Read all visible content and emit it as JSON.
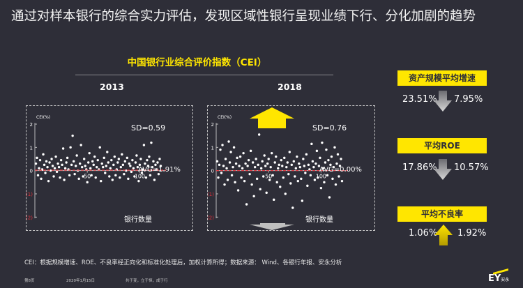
{
  "title": "通过对样本银行的综合实力评估，发现区域性银行呈现业绩下行、分化加剧的趋势",
  "subtitle": "中国银行业综合评价指数（CEI）",
  "metrics": [
    {
      "label": "资产规模平均增速",
      "from": "23.51%",
      "to": "7.95%",
      "direction": "down"
    },
    {
      "label": "平均ROE",
      "from": "17.86%",
      "to": "10.57%",
      "direction": "down"
    },
    {
      "label": "平均不良率",
      "from": "1.06%",
      "to": "1.92%",
      "direction": "up"
    }
  ],
  "footnote": "CEI：根据规模增速、ROE、不良率经正向化和标准化处理后，加权计算所得；数据来源： Wind、各银行年报、安永分析",
  "footer": {
    "page": "第8页",
    "date": "2020年1月15日",
    "authors": "共于变，立于恒，成于行"
  },
  "logo": {
    "main": "EY",
    "sub": "安永"
  },
  "colors": {
    "background": "#2e2e38",
    "accent": "#ffe600",
    "avg_line": "#e0303a",
    "text": "#ffffff"
  },
  "chart_data": [
    {
      "type": "scatter",
      "year_label": "2013",
      "ylabel": "CEI(%)",
      "xlabel": "银行数量",
      "yticks": [
        "2",
        "1",
        "0",
        "(1)",
        "(2)"
      ],
      "ytick_values": [
        2,
        1,
        0,
        -1,
        -2
      ],
      "xticks": [
        "50",
        "100"
      ],
      "xtick_values": [
        50,
        100
      ],
      "xlim": [
        0,
        125
      ],
      "ylim": [
        -2.2,
        2.3
      ],
      "sd_label": "SD=0.59",
      "avg_label": "AVG=1.91%",
      "avg_value": 0.019,
      "trend_arrow": "",
      "series": [
        {
          "x": [
            1,
            2,
            3,
            4,
            5,
            6,
            7,
            8,
            9,
            10,
            11,
            12,
            13,
            14,
            15,
            16,
            17,
            18,
            19,
            20,
            21,
            22,
            23,
            24,
            25,
            26,
            27,
            28,
            29,
            30,
            31,
            32,
            33,
            34,
            35,
            36,
            37,
            38,
            39,
            40,
            41,
            42,
            43,
            44,
            45,
            46,
            47,
            48,
            49,
            50,
            51,
            52,
            53,
            54,
            55,
            56,
            57,
            58,
            59,
            60,
            61,
            62,
            63,
            64,
            65,
            66,
            67,
            68,
            69,
            70,
            71,
            72,
            73,
            74,
            75,
            76,
            77,
            78,
            79,
            80,
            81,
            82,
            83,
            84,
            85,
            86,
            87,
            88,
            89,
            90,
            91,
            92,
            93,
            94,
            95,
            96,
            97,
            98,
            99,
            100,
            101,
            102,
            103,
            104,
            105,
            106,
            107,
            108,
            109,
            110,
            111,
            112,
            113,
            114,
            115,
            116,
            117,
            118,
            119,
            120
          ],
          "y": [
            0.3,
            0.55,
            -0.2,
            0.1,
            0.45,
            -0.35,
            0.05,
            0.7,
            0.25,
            -0.1,
            0.4,
            0.15,
            -0.45,
            0.35,
            0.0,
            0.5,
            0.2,
            -0.25,
            0.1,
            0.6,
            -0.05,
            0.3,
            0.15,
            -0.3,
            0.45,
            0.25,
            0.95,
            -0.4,
            0.1,
            0.35,
            0.55,
            0.05,
            -0.2,
            1.0,
            0.25,
            1.5,
            0.4,
            -0.15,
            0.2,
            0.65,
            0.0,
            -0.35,
            0.3,
            1.1,
            0.15,
            -0.25,
            0.5,
            0.2,
            0.05,
            -0.5,
            0.35,
            0.75,
            0.1,
            -0.2,
            0.4,
            0.25,
            0.6,
            -0.3,
            0.15,
            0.45,
            0.05,
            1.0,
            -0.45,
            0.3,
            0.15,
            0.55,
            -0.1,
            0.2,
            0.8,
            0.35,
            -0.25,
            0.1,
            0.45,
            -0.4,
            0.25,
            0.6,
            -0.2,
            0.05,
            0.35,
            0.5,
            -0.3,
            0.15,
            0.7,
            0.25,
            -0.15,
            0.4,
            0.0,
            0.55,
            -0.35,
            0.3,
            0.2,
            -0.05,
            0.45,
            0.1,
            -0.25,
            0.35,
            0.65,
            0.15,
            -0.45,
            0.25,
            0.5,
            -0.1,
            0.05,
            1.1,
            0.3,
            -0.3,
            0.45,
            0.2,
            0.6,
            -0.2,
            1.2,
            0.15,
            0.4,
            -0.4,
            0.25,
            0.05,
            0.35,
            -0.15,
            0.5,
            0.2
          ]
        }
      ]
    },
    {
      "type": "scatter",
      "year_label": "2018",
      "ylabel": "CEI(%)",
      "xlabel": "银行数量",
      "yticks": [
        "2",
        "1",
        "0",
        "(1)",
        "(2)"
      ],
      "ytick_values": [
        2,
        1,
        0,
        -1,
        -2
      ],
      "xticks": [
        "50",
        "100"
      ],
      "xtick_values": [
        50,
        100
      ],
      "xlim": [
        0,
        125
      ],
      "ylim": [
        -2.2,
        2.3
      ],
      "sd_label": "SD=0.76",
      "avg_label": "AVG=0.00%",
      "avg_value": 0.0,
      "trend_arrow": "up",
      "trend_arrow_bottom": "down",
      "series": [
        {
          "x": [
            1,
            2,
            3,
            4,
            5,
            6,
            7,
            8,
            9,
            10,
            11,
            12,
            13,
            14,
            15,
            16,
            17,
            18,
            19,
            20,
            21,
            22,
            23,
            24,
            25,
            26,
            27,
            28,
            29,
            30,
            31,
            32,
            33,
            34,
            35,
            36,
            37,
            38,
            39,
            40,
            41,
            42,
            43,
            44,
            45,
            46,
            47,
            48,
            49,
            50,
            51,
            52,
            53,
            54,
            55,
            56,
            57,
            58,
            59,
            60,
            61,
            62,
            63,
            64,
            65,
            66,
            67,
            68,
            69,
            70,
            71,
            72,
            73,
            74,
            75,
            76,
            77,
            78,
            79,
            80,
            81,
            82,
            83,
            84,
            85,
            86,
            87,
            88,
            89,
            90,
            91,
            92,
            93,
            94,
            95,
            96,
            97,
            98,
            99,
            100,
            101,
            102,
            103,
            104,
            105,
            106,
            107,
            108,
            109,
            110,
            111,
            112,
            113,
            114,
            115,
            116,
            117,
            118,
            119,
            120
          ],
          "y": [
            0.4,
            -0.3,
            0.25,
            0.9,
            -0.1,
            1.1,
            0.2,
            -0.6,
            0.5,
            0.1,
            -0.4,
            1.25,
            0.35,
            0.8,
            -0.2,
            0.15,
            1.0,
            -0.5,
            0.3,
            0.55,
            -0.85,
            0.2,
            0.6,
            -0.3,
            0.1,
            0.75,
            -0.45,
            0.3,
            -1.45,
            0.2,
            0.45,
            -0.15,
            0.85,
            -0.6,
            0.35,
            -1.1,
            0.15,
            0.5,
            -0.35,
            0.25,
            1.55,
            -0.8,
            0.1,
            0.4,
            -0.25,
            0.65,
            0.2,
            -0.95,
            0.3,
            0.5,
            -0.4,
            0.15,
            0.75,
            -0.2,
            -1.25,
            0.35,
            0.6,
            -0.5,
            0.1,
            0.25,
            -0.7,
            0.45,
            0.2,
            -0.3,
            0.55,
            -1.0,
            0.15,
            0.35,
            -0.15,
            0.8,
            -0.55,
            0.25,
            -1.6,
            0.4,
            -0.25,
            0.1,
            0.6,
            -0.45,
            0.3,
            0.15,
            -0.35,
            -1.3,
            0.5,
            0.2,
            -0.1,
            0.7,
            -0.65,
            0.25,
            0.05,
            -0.2,
            1.15,
            0.4,
            0.15,
            -0.4,
            0.3,
            0.85,
            -0.3,
            0.2,
            0.55,
            -0.75,
            1.2,
            0.1,
            -0.5,
            0.35,
            0.9,
            -0.2,
            0.45,
            -1.15,
            0.25,
            0.6,
            -0.35,
            0.15,
            1.0,
            -0.6,
            0.3,
            0.7,
            -0.25,
            0.2,
            0.5,
            -0.45
          ]
        }
      ]
    }
  ]
}
